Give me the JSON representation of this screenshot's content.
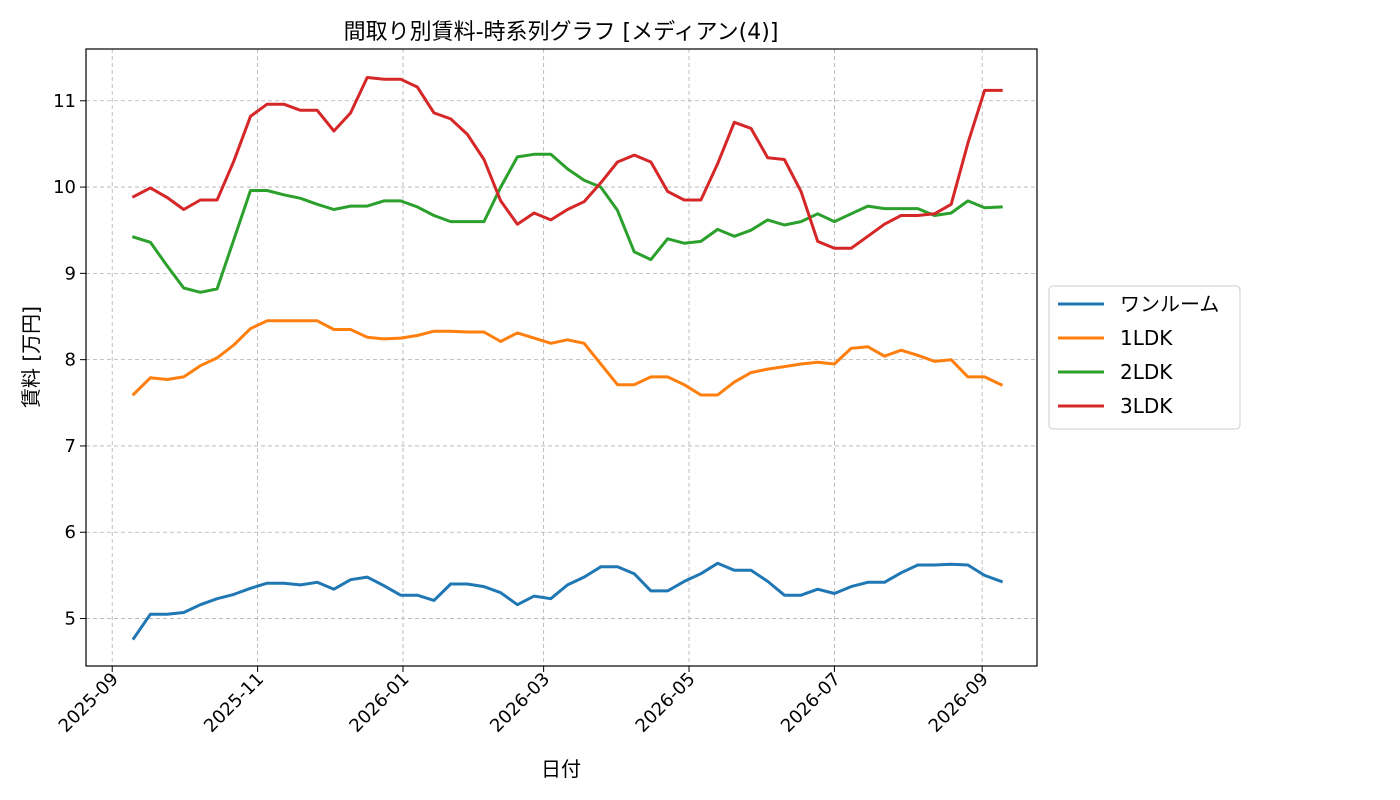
{
  "chart_data": {
    "type": "line",
    "title": "間取り別賃料-時系列グラフ [メディアン(4)]",
    "xlabel": "日付",
    "ylabel": "賃料 [万円]",
    "ylim": [
      4.45,
      11.6
    ],
    "xlim": [
      "2025-08-21",
      "2026-09-24"
    ],
    "grid": true,
    "legend_position": "right",
    "x_ticks": [
      "2025-09-01",
      "2025-11-01",
      "2026-01-01",
      "2026-03-01",
      "2026-05-01",
      "2026-07-01",
      "2026-09-01"
    ],
    "x_tick_labels": [
      "2025-09",
      "2025-11",
      "2026-01",
      "2026-03",
      "2026-05",
      "2026-07",
      "2026-09"
    ],
    "y_ticks": [
      5,
      6,
      7,
      8,
      9,
      10,
      11
    ],
    "x": [
      "2025-09-10",
      "2025-09-17",
      "2025-09-24",
      "2025-10-01",
      "2025-10-08",
      "2025-10-15",
      "2025-10-22",
      "2025-10-29",
      "2025-11-05",
      "2025-11-12",
      "2025-11-19",
      "2025-11-26",
      "2025-12-03",
      "2025-12-10",
      "2025-12-17",
      "2025-12-24",
      "2025-12-31",
      "2026-01-07",
      "2026-01-14",
      "2026-01-21",
      "2026-01-28",
      "2026-02-04",
      "2026-02-11",
      "2026-02-18",
      "2026-02-25",
      "2026-03-04",
      "2026-03-11",
      "2026-03-18",
      "2026-03-25",
      "2026-04-01",
      "2026-04-08",
      "2026-04-15",
      "2026-04-22",
      "2026-04-29",
      "2026-05-06",
      "2026-05-13",
      "2026-05-20",
      "2026-05-27",
      "2026-06-03",
      "2026-06-10",
      "2026-06-17",
      "2026-06-24",
      "2026-07-01",
      "2026-07-08",
      "2026-07-15",
      "2026-07-22",
      "2026-07-29",
      "2026-08-05",
      "2026-08-12",
      "2026-08-19",
      "2026-08-26",
      "2026-09-02",
      "2026-09-09"
    ],
    "series": [
      {
        "name": "ワンルーム",
        "color": "#1f77b4",
        "values": [
          4.77,
          5.05,
          5.05,
          5.07,
          5.16,
          5.23,
          5.28,
          5.35,
          5.41,
          5.41,
          5.39,
          5.42,
          5.34,
          5.45,
          5.48,
          5.38,
          5.27,
          5.27,
          5.21,
          5.4,
          5.4,
          5.37,
          5.3,
          5.16,
          5.26,
          5.23,
          5.39,
          5.48,
          5.6,
          5.6,
          5.52,
          5.32,
          5.32,
          5.43,
          5.52,
          5.64,
          5.56,
          5.56,
          5.43,
          5.27,
          5.27,
          5.34,
          5.29,
          5.37,
          5.42,
          5.42,
          5.53,
          5.62,
          5.62,
          5.63,
          5.62,
          5.5,
          5.43
        ]
      },
      {
        "name": "1LDK",
        "color": "#ff7f0e",
        "values": [
          7.6,
          7.79,
          7.77,
          7.8,
          7.93,
          8.02,
          8.17,
          8.36,
          8.45,
          8.45,
          8.45,
          8.45,
          8.35,
          8.35,
          8.26,
          8.24,
          8.25,
          8.28,
          8.33,
          8.33,
          8.32,
          8.32,
          8.21,
          8.31,
          8.25,
          8.19,
          8.23,
          8.19,
          7.95,
          7.71,
          7.71,
          7.8,
          7.8,
          7.71,
          7.59,
          7.59,
          7.74,
          7.85,
          7.89,
          7.92,
          7.95,
          7.97,
          7.95,
          8.13,
          8.15,
          8.04,
          8.11,
          8.05,
          7.98,
          8.0,
          7.8,
          7.8,
          7.71
        ]
      },
      {
        "name": "2LDK",
        "color": "#2ca02c",
        "values": [
          9.42,
          9.36,
          9.09,
          8.83,
          8.78,
          8.82,
          9.39,
          9.96,
          9.96,
          9.91,
          9.87,
          9.8,
          9.74,
          9.78,
          9.78,
          9.84,
          9.84,
          9.77,
          9.67,
          9.6,
          9.6,
          9.6,
          10.0,
          10.35,
          10.38,
          10.38,
          10.21,
          10.08,
          10.0,
          9.73,
          9.25,
          9.16,
          9.4,
          9.35,
          9.37,
          9.51,
          9.43,
          9.5,
          9.62,
          9.56,
          9.6,
          9.69,
          9.6,
          9.69,
          9.78,
          9.75,
          9.75,
          9.75,
          9.67,
          9.7,
          9.84,
          9.76,
          9.77
        ]
      },
      {
        "name": "3LDK",
        "color": "#d62728",
        "values": [
          9.89,
          9.99,
          9.88,
          9.74,
          9.85,
          9.85,
          10.3,
          10.82,
          10.96,
          10.96,
          10.89,
          10.89,
          10.65,
          10.86,
          11.27,
          11.25,
          11.25,
          11.16,
          10.86,
          10.79,
          10.61,
          10.32,
          9.84,
          9.57,
          9.7,
          9.62,
          9.74,
          9.83,
          10.05,
          10.29,
          10.37,
          10.29,
          9.95,
          9.85,
          9.85,
          10.27,
          10.75,
          10.68,
          10.34,
          10.32,
          9.95,
          9.37,
          9.29,
          9.29,
          9.43,
          9.57,
          9.67,
          9.67,
          9.69,
          9.8,
          10.51,
          11.12,
          11.12
        ]
      }
    ]
  }
}
